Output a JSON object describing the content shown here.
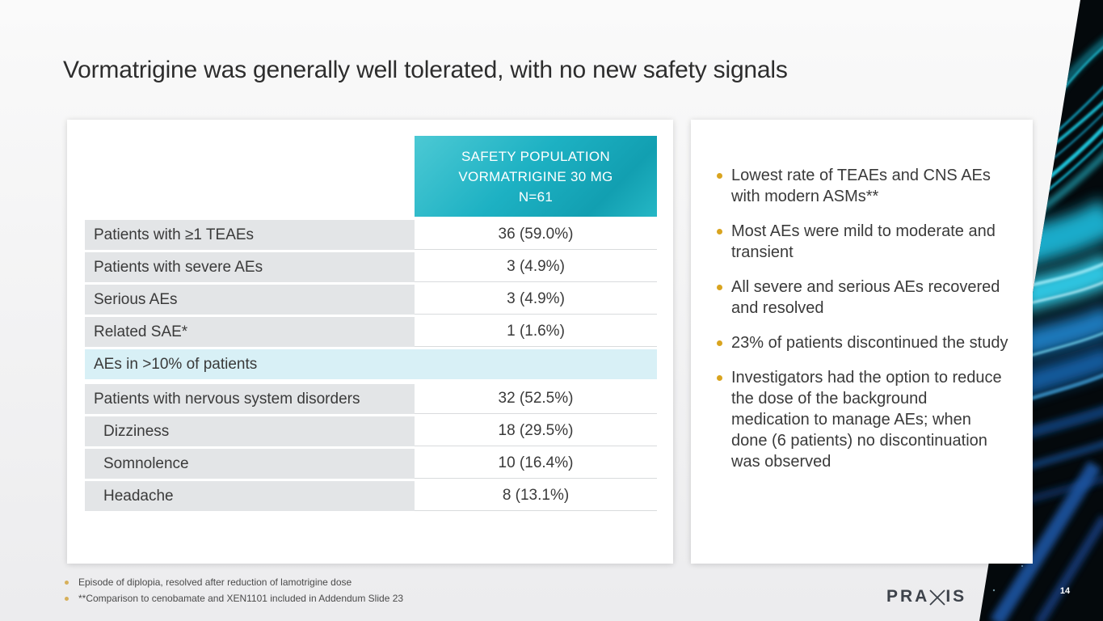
{
  "slide": {
    "title": "Vormatrigine was generally well tolerated, with no new safety signals",
    "page_number": "14"
  },
  "table": {
    "header_lines": [
      "SAFETY POPULATION",
      "VORMATRIGINE 30 MG",
      "N=61"
    ],
    "rows": [
      {
        "type": "data",
        "label": "Patients with ≥1 TEAEs",
        "value": "36 (59.0%)",
        "indent": false
      },
      {
        "type": "data",
        "label": "Patients with severe AEs",
        "value": "3 (4.9%)",
        "indent": false
      },
      {
        "type": "data",
        "label": "Serious AEs",
        "value": "3 (4.9%)",
        "indent": false
      },
      {
        "type": "data",
        "label": "Related SAE*",
        "value": "1 (1.6%)",
        "indent": false
      },
      {
        "type": "section",
        "label": "AEs in >10% of patients",
        "value": "",
        "indent": false
      },
      {
        "type": "data",
        "label": "Patients with nervous system disorders",
        "value": "32 (52.5%)",
        "indent": false
      },
      {
        "type": "data",
        "label": "Dizziness",
        "value": "18 (29.5%)",
        "indent": true
      },
      {
        "type": "data",
        "label": "Somnolence",
        "value": "10 (16.4%)",
        "indent": true
      },
      {
        "type": "data",
        "label": "Headache",
        "value": "8 (13.1%)",
        "indent": true
      }
    ]
  },
  "key_points": [
    "Lowest rate of TEAEs and CNS AEs with modern ASMs**",
    "Most AEs were mild to moderate and transient",
    "All severe and serious AEs recovered and resolved",
    "23% of patients discontinued the study",
    "Investigators had the option to reduce the dose of the background medication to manage AEs; when done (6 patients) no discontinuation was observed"
  ],
  "footnotes": [
    "Episode of diplopia, resolved after reduction of lamotrigine dose",
    "**Comparison to cenobamate and XEN1101 included in Addendum Slide 23"
  ],
  "logo": {
    "prefix": "PRA",
    "suffix": "IS"
  },
  "colors": {
    "header_teal": "#1db1c3",
    "header_teal_light": "#4cc9d4",
    "row_gray": "#e3e5e7",
    "highlight_cyan": "#d8f0f6",
    "bullet_gold": "#d9a41f",
    "title_text": "#2d2d2d",
    "body_text": "#3a3a3a",
    "fiber_cyan": "#2fc6e2",
    "fiber_blue": "#1565ae"
  }
}
